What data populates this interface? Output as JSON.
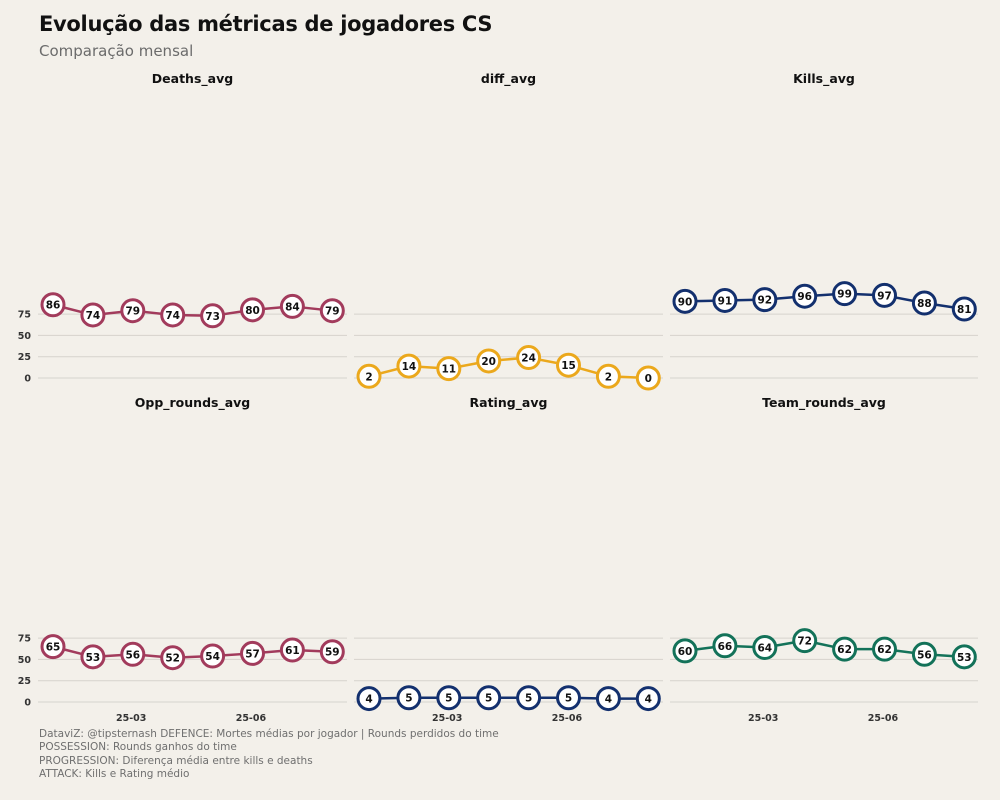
{
  "header": {
    "title": "Evolução das métricas de jogadores CS",
    "subtitle": "Comparação mensal"
  },
  "caption": {
    "lines": [
      "DataviZ: @tipsternash DEFENCE: Mortes médias por jogador | Rounds perdidos do time",
      "POSSESSION: Rounds ganhos do time",
      "PROGRESSION: Diferença média entre kills e deaths",
      "ATTACK: Kills e Rating médio"
    ]
  },
  "chart_data": {
    "type": "line",
    "facets": true,
    "ylim": [
      0,
      100
    ],
    "yticks": [
      0,
      25,
      50,
      75
    ],
    "xticks": [
      {
        "index": 1.96,
        "label": "25-03"
      },
      {
        "index": 4.96,
        "label": "25-06"
      }
    ],
    "grid": true,
    "panels": [
      {
        "name": "Deaths_avg",
        "color": "#a23b5c",
        "values": [
          86,
          74,
          79,
          74,
          73,
          80,
          84,
          79
        ]
      },
      {
        "name": "diff_avg",
        "color": "#eba81c",
        "values": [
          2,
          14,
          11,
          20,
          24,
          15,
          2,
          0
        ]
      },
      {
        "name": "Kills_avg",
        "color": "#13306e",
        "values": [
          90,
          91,
          92,
          96,
          99,
          97,
          88,
          81
        ]
      },
      {
        "name": "Opp_rounds_avg",
        "color": "#a23b5c",
        "values": [
          65,
          53,
          56,
          52,
          54,
          57,
          61,
          59
        ]
      },
      {
        "name": "Rating_avg",
        "color": "#13306e",
        "values": [
          4,
          5,
          5,
          5,
          5,
          5,
          4,
          4
        ]
      },
      {
        "name": "Team_rounds_avg",
        "color": "#137259",
        "values": [
          60,
          66,
          64,
          72,
          62,
          62,
          56,
          53
        ]
      }
    ]
  }
}
